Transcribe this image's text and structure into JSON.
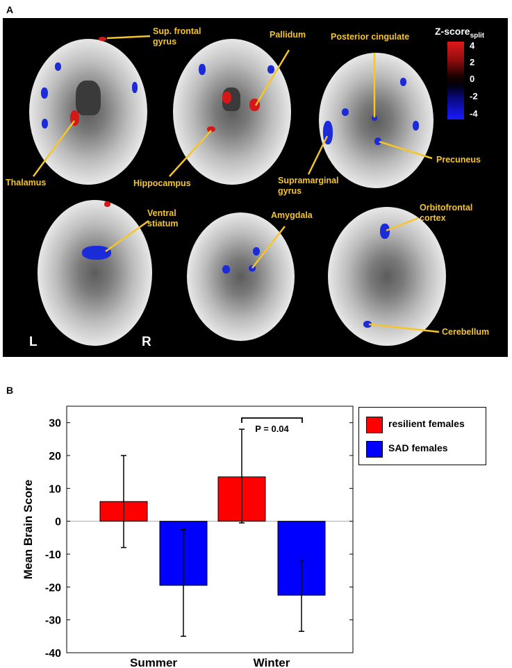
{
  "panel_a": {
    "letter": "A",
    "colorbar": {
      "title_main": "Z-score",
      "title_sub": "split",
      "ticks": [
        "4",
        "2",
        "0",
        "-2",
        "-4"
      ],
      "colors": [
        "#e01a1a",
        "#1a1aff"
      ]
    },
    "region_labels": {
      "sup_frontal": "Sup. frontal\ngyrus",
      "thalamus": "Thalamus",
      "pallidum": "Pallidum",
      "hippocampus": "Hippocampus",
      "posterior_cingulate": "Posterior cingulate",
      "precuneus": "Precuneus",
      "supramarginal": "Supramarginal\ngyrus",
      "ventral_striatum": "Ventral\nstiatum",
      "amygdala": "Amygdala",
      "orbitofrontal": "Orbitofrontal\ncortex",
      "cerebellum": "Cerebellum"
    },
    "orientation_left": "L",
    "orientation_right": "R"
  },
  "panel_b": {
    "letter": "B",
    "significance_label": "P = 0.04"
  },
  "chart_data": {
    "type": "bar",
    "categories": [
      "Summer",
      "Winter"
    ],
    "series": [
      {
        "name": "resilient females",
        "color": "#ff0000",
        "values": [
          6,
          13.5
        ],
        "error_low": [
          -8,
          -0.5
        ],
        "error_high": [
          20,
          28
        ]
      },
      {
        "name": "SAD females",
        "color": "#0000ff",
        "values": [
          -19.5,
          -22.5
        ],
        "error_low": [
          -35,
          -33.5
        ],
        "error_high": [
          -2.5,
          -12
        ]
      }
    ],
    "xlabel": "",
    "ylabel": "Mean Brain Score",
    "ylim": [
      -40,
      35
    ],
    "yticks": [
      -40,
      -30,
      -20,
      -10,
      0,
      10,
      20,
      30
    ],
    "legend_position": "right"
  }
}
